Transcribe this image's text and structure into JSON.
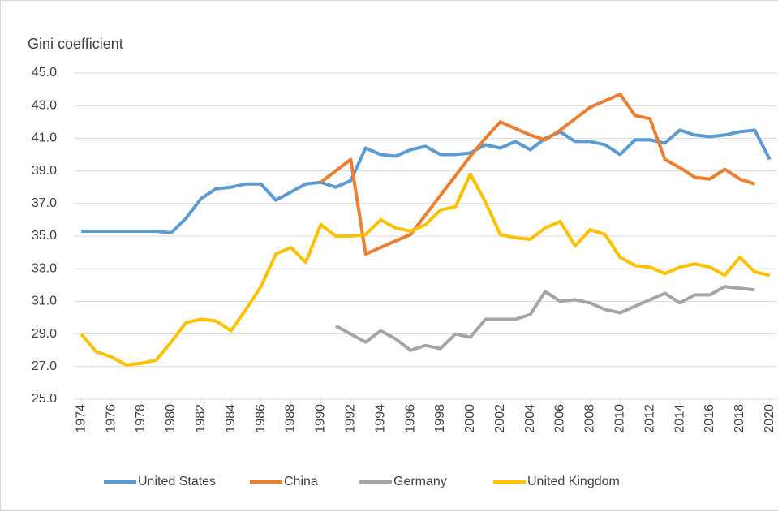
{
  "chart_data": {
    "type": "line",
    "title": "Gini coefficient",
    "x": [
      1974,
      1975,
      1976,
      1977,
      1978,
      1979,
      1980,
      1981,
      1982,
      1983,
      1984,
      1985,
      1986,
      1987,
      1988,
      1989,
      1990,
      1991,
      1992,
      1993,
      1994,
      1995,
      1996,
      1997,
      1998,
      1999,
      2000,
      2001,
      2002,
      2003,
      2004,
      2005,
      2006,
      2007,
      2008,
      2009,
      2010,
      2011,
      2012,
      2013,
      2014,
      2015,
      2016,
      2017,
      2018,
      2019,
      2020
    ],
    "xlim": [
      1973.5,
      2020.5
    ],
    "xticks": [
      1974,
      1976,
      1978,
      1980,
      1982,
      1984,
      1986,
      1988,
      1990,
      1992,
      1994,
      1996,
      1998,
      2000,
      2002,
      2004,
      2006,
      2008,
      2010,
      2012,
      2014,
      2016,
      2018,
      2020
    ],
    "ylim": [
      25,
      45
    ],
    "yticks": [
      {
        "value": 25,
        "label": "25.0"
      },
      {
        "value": 27,
        "label": "27.0"
      },
      {
        "value": 29,
        "label": "29.0"
      },
      {
        "value": 31,
        "label": "31.0"
      },
      {
        "value": 33,
        "label": "33.0"
      },
      {
        "value": 35,
        "label": "35.0"
      },
      {
        "value": 37,
        "label": "37.0"
      },
      {
        "value": 39,
        "label": "39.0"
      },
      {
        "value": 41,
        "label": "41.0"
      },
      {
        "value": 43,
        "label": "43.0"
      },
      {
        "value": 45,
        "label": "45.0"
      }
    ],
    "grid": true,
    "legend": "bottom",
    "series": [
      {
        "name": "United States",
        "color": "#5b9bd5",
        "values": [
          35.3,
          35.3,
          35.3,
          35.3,
          35.3,
          35.3,
          35.2,
          36.1,
          37.3,
          37.9,
          38.0,
          38.2,
          38.2,
          37.2,
          37.7,
          38.2,
          38.3,
          38.0,
          38.4,
          40.4,
          40.0,
          39.9,
          40.3,
          40.5,
          40.0,
          40.0,
          40.1,
          40.6,
          40.4,
          40.8,
          40.3,
          41.0,
          41.4,
          40.8,
          40.8,
          40.6,
          40.0,
          40.9,
          40.9,
          40.7,
          41.5,
          41.2,
          41.1,
          41.2,
          41.4,
          41.5,
          39.7
        ]
      },
      {
        "name": "China",
        "color": "#ed7d31",
        "values": [
          null,
          null,
          null,
          null,
          null,
          null,
          null,
          null,
          null,
          null,
          null,
          null,
          null,
          null,
          null,
          null,
          38.3,
          39.0,
          39.7,
          33.9,
          34.3,
          34.7,
          35.1,
          36.3,
          37.5,
          38.7,
          39.9,
          41.0,
          42.0,
          41.6,
          41.2,
          40.9,
          41.5,
          42.2,
          42.9,
          43.3,
          43.7,
          42.4,
          42.2,
          39.7,
          39.2,
          38.6,
          38.5,
          39.1,
          38.5,
          38.2,
          null
        ]
      },
      {
        "name": "Germany",
        "color": "#a5a5a5",
        "values": [
          null,
          null,
          null,
          null,
          null,
          null,
          null,
          null,
          null,
          null,
          null,
          null,
          null,
          null,
          null,
          null,
          null,
          29.5,
          29.0,
          28.5,
          29.2,
          28.7,
          28.0,
          28.3,
          28.1,
          29.0,
          28.8,
          29.9,
          29.9,
          29.9,
          30.2,
          31.6,
          31.0,
          31.1,
          30.9,
          30.5,
          30.3,
          30.7,
          31.1,
          31.5,
          30.9,
          31.4,
          31.4,
          31.9,
          31.8,
          31.7,
          null
        ]
      },
      {
        "name": "United Kingdom",
        "color": "#ffc000",
        "values": [
          29.0,
          27.9,
          27.6,
          27.1,
          27.2,
          27.4,
          28.5,
          29.7,
          29.9,
          29.8,
          29.2,
          30.5,
          31.9,
          33.9,
          34.3,
          33.4,
          35.7,
          35.0,
          35.0,
          35.1,
          36.0,
          35.5,
          35.3,
          35.7,
          36.6,
          36.8,
          38.8,
          37.1,
          35.1,
          34.9,
          34.8,
          35.5,
          35.9,
          34.4,
          35.4,
          35.1,
          33.7,
          33.2,
          33.1,
          32.7,
          33.1,
          33.3,
          33.1,
          32.6,
          33.7,
          32.8,
          32.6
        ]
      }
    ]
  }
}
